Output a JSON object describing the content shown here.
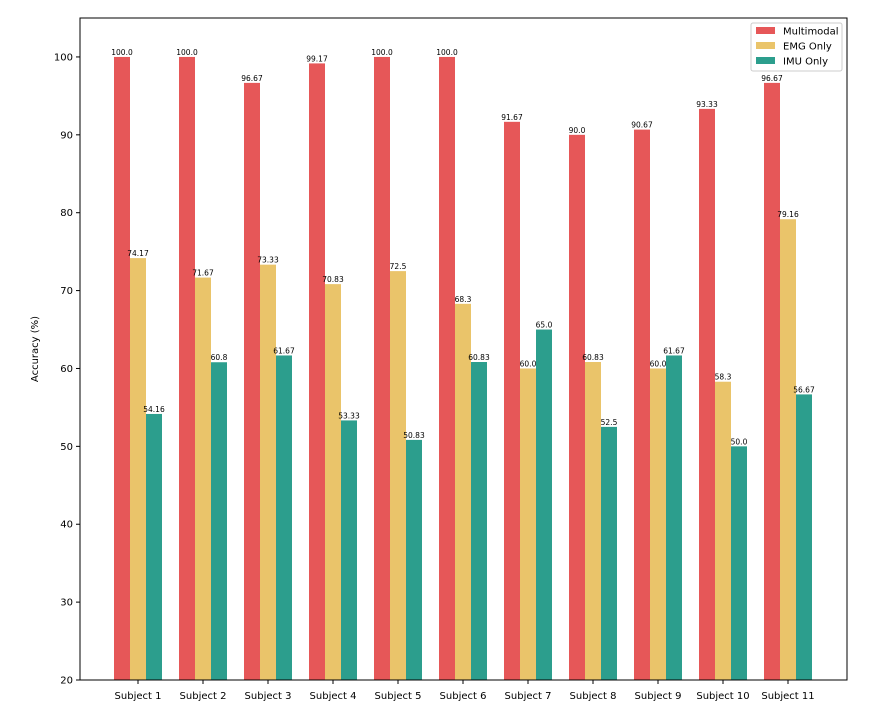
{
  "chart_data": {
    "type": "bar",
    "title": "",
    "xlabel": "",
    "ylabel": "Accuracy (%)",
    "ylim": [
      20,
      105
    ],
    "yticks": [
      20,
      30,
      40,
      50,
      60,
      70,
      80,
      90,
      100
    ],
    "ytick_labels": [
      "20",
      "30",
      "40",
      "50",
      "60",
      "70",
      "80",
      "90",
      "100"
    ],
    "grid": false,
    "legend_position": "top-right",
    "categories": [
      "Subject 1",
      "Subject 2",
      "Subject 3",
      "Subject 4",
      "Subject 5",
      "Subject 6",
      "Subject 7",
      "Subject 8",
      "Subject 9",
      "Subject 10",
      "Subject 11"
    ],
    "series": [
      {
        "name": "Multimodal",
        "color": "#e65758",
        "values": [
          100.0,
          100.0,
          96.67,
          99.17,
          100.0,
          100.0,
          91.67,
          90.0,
          90.67,
          93.33,
          96.67
        ],
        "labels": [
          "100.0",
          "100.0",
          "96.67",
          "99.17",
          "100.0",
          "100.0",
          "91.67",
          "90.0",
          "90.67",
          "93.33",
          "96.67"
        ]
      },
      {
        "name": "EMG Only",
        "color": "#eac46a",
        "values": [
          74.17,
          71.67,
          73.33,
          70.83,
          72.5,
          68.3,
          60.0,
          60.83,
          60.0,
          58.3,
          79.16
        ],
        "labels": [
          "74.17",
          "71.67",
          "73.33",
          "70.83",
          "72.5",
          "68.3",
          "60.0",
          "60.83",
          "60.0",
          "58.3",
          "79.16"
        ]
      },
      {
        "name": "IMU Only",
        "color": "#2c9e8d",
        "values": [
          54.16,
          60.8,
          61.67,
          53.33,
          50.83,
          60.83,
          65.0,
          52.5,
          61.67,
          50.0,
          56.67
        ],
        "labels": [
          "54.16",
          "60.8",
          "61.67",
          "53.33",
          "50.83",
          "60.83",
          "65.0",
          "52.5",
          "61.67",
          "50.0",
          "56.67"
        ]
      }
    ]
  }
}
